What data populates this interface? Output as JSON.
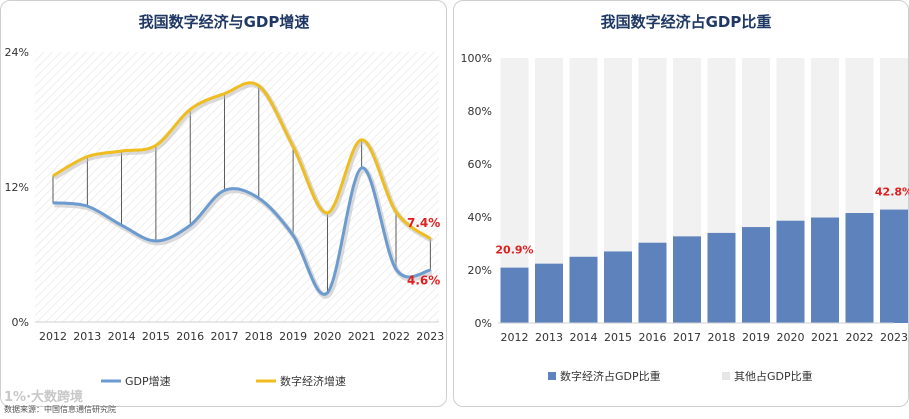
{
  "chart_data": [
    {
      "type": "line",
      "title": "我国数字经济与GDP增速",
      "categories": [
        "2012",
        "2013",
        "2014",
        "2015",
        "2016",
        "2017",
        "2018",
        "2019",
        "2020",
        "2021",
        "2022",
        "2023"
      ],
      "y_ticks": [
        "0%",
        "12%",
        "24%"
      ],
      "ylim": [
        0,
        24
      ],
      "series": [
        {
          "name": "GDP增速",
          "color": "#6b9bd0",
          "values": [
            10.6,
            10.3,
            8.6,
            7.2,
            8.6,
            11.7,
            11.0,
            7.7,
            2.6,
            13.7,
            4.7,
            4.6
          ]
        },
        {
          "name": "数字经济增速",
          "color": "#f0bd1f",
          "values": [
            13.0,
            14.7,
            15.2,
            15.7,
            18.9,
            20.3,
            21.0,
            15.6,
            9.7,
            16.2,
            9.8,
            7.4
          ]
        }
      ],
      "annotations": [
        {
          "series": "数字经济增速",
          "index": 11,
          "text": "7.4%",
          "color": "#e02020"
        },
        {
          "series": "GDP增速",
          "index": 11,
          "text": "4.6%",
          "color": "#e02020"
        }
      ],
      "grid": false,
      "legend": "bottom"
    },
    {
      "type": "bar",
      "stacked": true,
      "title": "我国数字经济占GDP比重",
      "categories": [
        "2012",
        "2013",
        "2014",
        "2015",
        "2016",
        "2017",
        "2018",
        "2019",
        "2020",
        "2021",
        "2022",
        "2023"
      ],
      "y_ticks": [
        "0%",
        "20%",
        "40%",
        "60%",
        "80%",
        "100%"
      ],
      "ylim": [
        0,
        100
      ],
      "series": [
        {
          "name": "数字经济占GDP比重",
          "color": "#5e82bb",
          "values": [
            20.9,
            22.4,
            25.0,
            27.0,
            30.3,
            32.7,
            34.0,
            36.2,
            38.6,
            39.8,
            41.5,
            42.8
          ]
        },
        {
          "name": "其他占GDP比重",
          "color": "#f1f1f1",
          "values": [
            79.1,
            77.6,
            75.0,
            73.0,
            69.7,
            67.3,
            66.0,
            63.8,
            61.4,
            60.2,
            58.5,
            57.2
          ]
        }
      ],
      "annotations": [
        {
          "series": "数字经济占GDP比重",
          "index": 0,
          "text": "20.9%",
          "color": "#e02020"
        },
        {
          "series": "数字经济占GDP比重",
          "index": 11,
          "text": "42.8%",
          "color": "#e02020"
        }
      ],
      "legend": "bottom"
    }
  ],
  "footer": {
    "source": "数据来源：中国信息通信研究院",
    "brand": "1%·大数跨境"
  }
}
